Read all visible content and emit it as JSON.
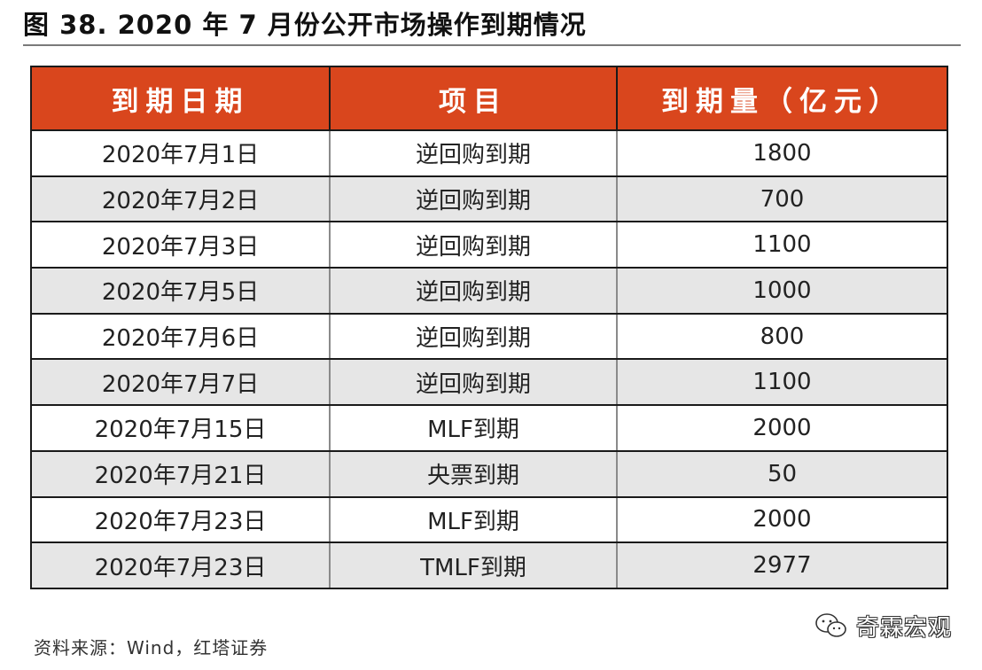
{
  "title": "图 38. 2020 年 7 月份公开市场操作到期情况",
  "table": {
    "headers": [
      "到期日期",
      "项目",
      "到期量（亿元）"
    ],
    "rows": [
      [
        "2020年7月1日",
        "逆回购到期",
        "1800"
      ],
      [
        "2020年7月2日",
        "逆回购到期",
        "700"
      ],
      [
        "2020年7月3日",
        "逆回购到期",
        "1100"
      ],
      [
        "2020年7月5日",
        "逆回购到期",
        "1000"
      ],
      [
        "2020年7月6日",
        "逆回购到期",
        "800"
      ],
      [
        "2020年7月7日",
        "逆回购到期",
        "1100"
      ],
      [
        "2020年7月15日",
        "MLF到期",
        "2000"
      ],
      [
        "2020年7月21日",
        "央票到期",
        "50"
      ],
      [
        "2020年7月23日",
        "MLF到期",
        "2000"
      ],
      [
        "2020年7月23日",
        "TMLF到期",
        "2977"
      ]
    ]
  },
  "source": "资料来源：Wind，红塔证券",
  "watermark": {
    "text": "奇霖宏观",
    "icon": "wechat-icon"
  },
  "colors": {
    "header_bg": "#d9461d",
    "header_text": "#ffffff",
    "row_alt_bg": "#e6e6e6"
  }
}
